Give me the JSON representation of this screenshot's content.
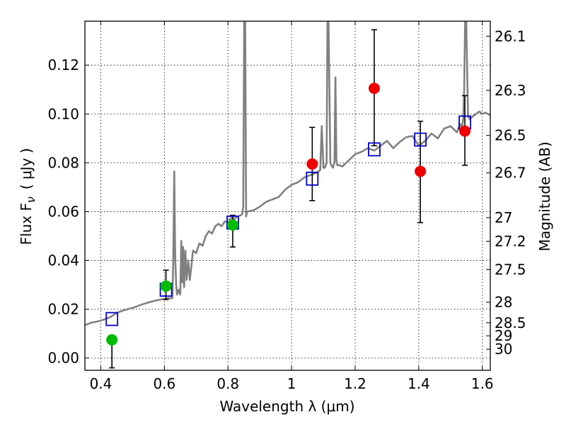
{
  "chart_data": {
    "type": "scatter",
    "title": "",
    "xlabel": "Wavelength  λ (μm)",
    "ylabel_left": "Flux  F",
    "ylabel_left_sub": "ν",
    "ylabel_left_unit": "( μJy )",
    "ylabel_right": "Magnitude (AB)",
    "xlim": [
      0.35,
      1.625
    ],
    "ylim": [
      -0.005,
      0.138
    ],
    "grid": true,
    "x_ticks": [
      {
        "value": 0.4,
        "label": "0.4"
      },
      {
        "value": 0.6,
        "label": "0.6"
      },
      {
        "value": 0.8,
        "label": "0.8"
      },
      {
        "value": 1.0,
        "label": "1"
      },
      {
        "value": 1.2,
        "label": "1.2"
      },
      {
        "value": 1.4,
        "label": "1.4"
      },
      {
        "value": 1.6,
        "label": "1.6"
      }
    ],
    "y_ticks": [
      {
        "value": 0.0,
        "label": "0.00"
      },
      {
        "value": 0.02,
        "label": "0.02"
      },
      {
        "value": 0.04,
        "label": "0.04"
      },
      {
        "value": 0.06,
        "label": "0.06"
      },
      {
        "value": 0.08,
        "label": "0.08"
      },
      {
        "value": 0.1,
        "label": "0.10"
      },
      {
        "value": 0.12,
        "label": "0.12"
      }
    ],
    "magnitude_ticks": [
      {
        "value": 26.1,
        "label": "26.1"
      },
      {
        "value": 26.3,
        "label": "26.3"
      },
      {
        "value": 26.5,
        "label": "26.5"
      },
      {
        "value": 26.7,
        "label": "26.7"
      },
      {
        "value": 27.0,
        "label": "27"
      },
      {
        "value": 27.2,
        "label": "27.2"
      },
      {
        "value": 27.5,
        "label": "27.5"
      },
      {
        "value": 28.0,
        "label": "28"
      },
      {
        "value": 28.5,
        "label": "28.5"
      },
      {
        "value": 29.0,
        "label": "29"
      },
      {
        "value": 30.0,
        "label": "30"
      }
    ],
    "series": [
      {
        "name": "model SED",
        "kind": "line",
        "color": "#808080",
        "x": [
          0.35,
          0.37,
          0.39,
          0.41,
          0.43,
          0.45,
          0.47,
          0.49,
          0.51,
          0.53,
          0.55,
          0.57,
          0.59,
          0.61,
          0.625,
          0.628,
          0.631,
          0.634,
          0.637,
          0.64,
          0.645,
          0.65,
          0.653,
          0.656,
          0.659,
          0.662,
          0.666,
          0.67,
          0.675,
          0.68,
          0.69,
          0.7,
          0.71,
          0.72,
          0.73,
          0.74,
          0.75,
          0.76,
          0.77,
          0.78,
          0.79,
          0.8,
          0.81,
          0.82,
          0.83,
          0.84,
          0.845,
          0.848,
          0.851,
          0.854,
          0.857,
          0.86,
          0.88,
          0.9,
          0.92,
          0.94,
          0.96,
          0.98,
          1.0,
          1.02,
          1.04,
          1.06,
          1.08,
          1.09,
          1.095,
          1.1,
          1.105,
          1.11,
          1.113,
          1.116,
          1.119,
          1.122,
          1.125,
          1.13,
          1.135,
          1.138,
          1.141,
          1.144,
          1.15,
          1.16,
          1.18,
          1.2,
          1.22,
          1.24,
          1.26,
          1.28,
          1.3,
          1.32,
          1.34,
          1.36,
          1.38,
          1.4,
          1.42,
          1.44,
          1.46,
          1.48,
          1.5,
          1.52,
          1.53,
          1.535,
          1.54,
          1.543,
          1.546,
          1.549,
          1.552,
          1.555,
          1.56,
          1.57,
          1.58,
          1.59,
          1.6,
          1.61,
          1.625
        ],
        "y": [
          0.0135,
          0.0145,
          0.015,
          0.0158,
          0.0168,
          0.0185,
          0.0195,
          0.0202,
          0.021,
          0.022,
          0.0228,
          0.0235,
          0.024,
          0.0245,
          0.0245,
          0.04,
          0.0765,
          0.042,
          0.03,
          0.026,
          0.028,
          0.026,
          0.048,
          0.031,
          0.0455,
          0.029,
          0.044,
          0.032,
          0.04,
          0.032,
          0.044,
          0.043,
          0.047,
          0.046,
          0.05,
          0.052,
          0.051,
          0.054,
          0.055,
          0.054,
          0.056,
          0.0555,
          0.0575,
          0.057,
          0.058,
          0.0585,
          0.059,
          0.062,
          0.14,
          0.14,
          0.058,
          0.06,
          0.0605,
          0.062,
          0.064,
          0.065,
          0.066,
          0.069,
          0.071,
          0.072,
          0.074,
          0.075,
          0.076,
          0.077,
          0.095,
          0.078,
          0.078,
          0.08,
          0.14,
          0.14,
          0.11,
          0.08,
          0.079,
          0.078,
          0.08,
          0.115,
          0.081,
          0.079,
          0.079,
          0.0785,
          0.081,
          0.0835,
          0.0845,
          0.086,
          0.085,
          0.087,
          0.089,
          0.086,
          0.0885,
          0.0905,
          0.091,
          0.087,
          0.089,
          0.092,
          0.09,
          0.094,
          0.095,
          0.0925,
          0.096,
          0.094,
          0.098,
          0.11,
          0.14,
          0.14,
          0.12,
          0.099,
          0.098,
          0.099,
          0.1,
          0.101,
          0.1,
          0.1005,
          0.0995
        ]
      },
      {
        "name": "green photometry",
        "kind": "points",
        "marker": "circle",
        "color": "#00bb00",
        "x": [
          0.435,
          0.605,
          0.815
        ],
        "y": [
          0.0075,
          0.0295,
          0.0545
        ],
        "yerr_low": [
          0.003,
          0.024,
          0.0455
        ],
        "yerr_high": [
          0.003,
          0.036,
          0.0585
        ],
        "show_err": [
          false,
          true,
          true
        ]
      },
      {
        "name": "red photometry",
        "kind": "points",
        "marker": "circle",
        "color": "#ee0000",
        "x": [
          0.435,
          1.065,
          1.26,
          1.405,
          1.545
        ],
        "y": [
          null,
          0.0795,
          0.1105,
          0.0765,
          0.093
        ],
        "yerr_low": [
          -0.004,
          0.0645,
          0.087,
          0.0555,
          0.079
        ],
        "yerr_high": [
          0.0075,
          0.0945,
          0.1345,
          0.097,
          0.1075
        ],
        "show_err": [
          true,
          true,
          true,
          true,
          true
        ]
      },
      {
        "name": "model synthetic photometry",
        "kind": "points",
        "marker": "open-square",
        "color": "#0000cc",
        "x": [
          0.435,
          0.605,
          0.815,
          1.065,
          1.26,
          1.405,
          1.545
        ],
        "y": [
          0.016,
          0.028,
          0.0555,
          0.0735,
          0.0855,
          0.0895,
          0.0965
        ]
      }
    ]
  }
}
